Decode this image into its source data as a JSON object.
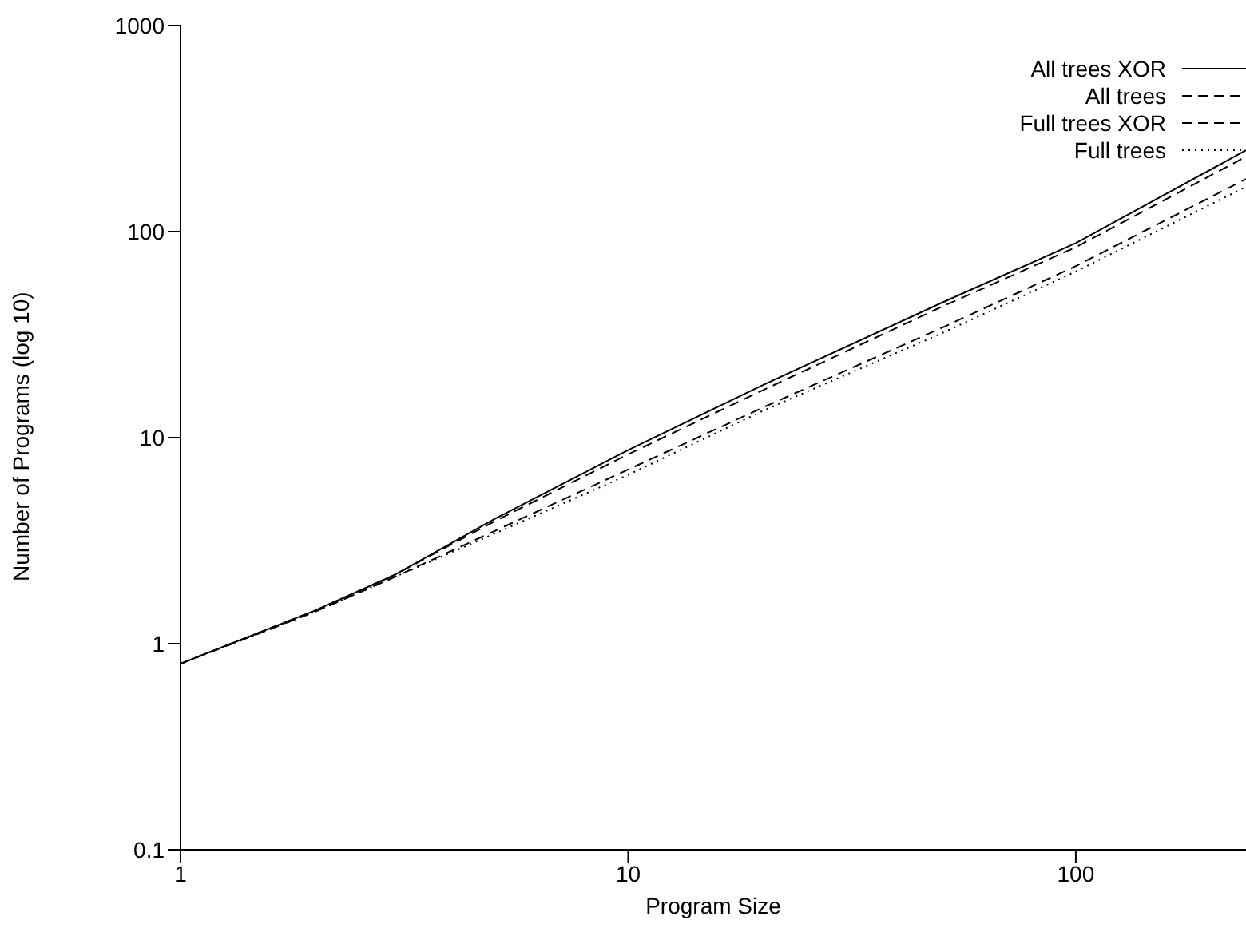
{
  "chart_data": {
    "type": "line",
    "xlabel": "Program Size",
    "ylabel": "Number of Programs (log 10)",
    "log": "xy",
    "xlim": [
      1,
      240
    ],
    "xticks": [
      1,
      10,
      100
    ],
    "ylim": [
      0.1,
      1000
    ],
    "yticks": [
      0.1,
      1,
      10,
      100,
      1000
    ],
    "legend": "top right",
    "marker": "none",
    "x": [
      1,
      2,
      3,
      5,
      10,
      20,
      50,
      100,
      240
    ],
    "series": [
      {
        "name": "All trees XOR",
        "color": "#000000",
        "line_style": "solid",
        "values": [
          0.8,
          1.45,
          2.15,
          4.0,
          8.7,
          18,
          45,
          88,
          248
        ]
      },
      {
        "name": "All trees",
        "color": "#000000",
        "line_style": "dashed",
        "values": [
          0.8,
          1.45,
          2.15,
          3.9,
          8.3,
          17,
          43,
          84,
          231
        ]
      },
      {
        "name": "Full trees XOR",
        "color": "#000000",
        "line_style": "dashed",
        "values": [
          0.8,
          1.43,
          2.1,
          3.5,
          7.0,
          14,
          34,
          68,
          180
        ]
      },
      {
        "name": "Full trees",
        "color": "#000000",
        "line_style": "dotted",
        "values": [
          0.8,
          1.43,
          2.1,
          3.4,
          6.6,
          13.5,
          32,
          64,
          165
        ]
      }
    ]
  }
}
